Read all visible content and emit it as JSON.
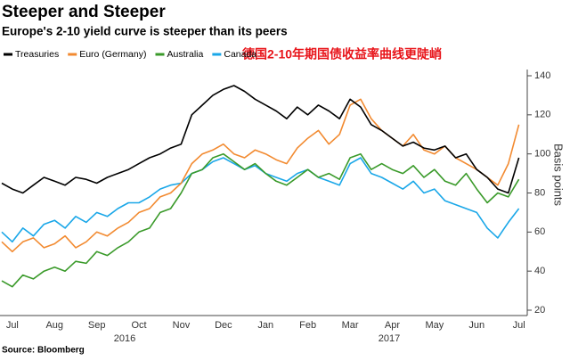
{
  "chart_data": {
    "type": "line",
    "title": "Steeper and Steeper",
    "subtitle": "Europe's 2-10 yield curve is steeper than its peers",
    "annotation": "德国2-10年期国债收益率曲线更陡峭",
    "y_axis_title": "Basis points",
    "source": "Source: Bloomberg",
    "years": [
      "2016",
      "2017"
    ],
    "categories": [
      null,
      "Jul",
      null,
      null,
      null,
      "Aug",
      null,
      null,
      null,
      "Sep",
      null,
      null,
      null,
      "Oct",
      null,
      null,
      null,
      "Nov",
      null,
      null,
      null,
      "Dec",
      null,
      null,
      null,
      "Jan",
      null,
      null,
      null,
      "Feb",
      null,
      null,
      null,
      "Mar",
      null,
      null,
      null,
      "Apr",
      null,
      null,
      null,
      "May",
      null,
      null,
      null,
      "Jun",
      null,
      null,
      null,
      "Jul"
    ],
    "ylim": [
      20,
      140
    ],
    "yticks": [
      20,
      40,
      60,
      80,
      100,
      120,
      140
    ],
    "grid": false,
    "series": [
      {
        "name": "Treasuries",
        "color": "#000000",
        "values": [
          85,
          82,
          80,
          84,
          88,
          86,
          84,
          88,
          87,
          85,
          88,
          90,
          92,
          95,
          98,
          100,
          103,
          105,
          120,
          125,
          130,
          133,
          135,
          132,
          128,
          125,
          122,
          118,
          124,
          120,
          125,
          122,
          118,
          128,
          124,
          115,
          112,
          108,
          104,
          106,
          103,
          102,
          104,
          98,
          100,
          92,
          88,
          82,
          80,
          98
        ]
      },
      {
        "name": "Euro (Germany)",
        "color": "#f28a30",
        "values": [
          55,
          50,
          55,
          57,
          52,
          54,
          58,
          52,
          55,
          60,
          58,
          62,
          65,
          70,
          72,
          78,
          80,
          85,
          95,
          100,
          102,
          105,
          100,
          98,
          102,
          100,
          97,
          95,
          103,
          108,
          112,
          105,
          110,
          125,
          128,
          118,
          112,
          108,
          104,
          110,
          102,
          100,
          104,
          98,
          95,
          92,
          88,
          84,
          95,
          115
        ]
      },
      {
        "name": "Australia",
        "color": "#3a9a2a",
        "values": [
          35,
          32,
          38,
          36,
          40,
          42,
          40,
          45,
          44,
          50,
          48,
          52,
          55,
          60,
          62,
          70,
          72,
          80,
          90,
          92,
          98,
          100,
          96,
          92,
          95,
          90,
          86,
          84,
          88,
          92,
          88,
          90,
          87,
          98,
          100,
          92,
          95,
          92,
          90,
          94,
          88,
          92,
          86,
          84,
          90,
          82,
          75,
          80,
          78,
          87
        ]
      },
      {
        "name": "Canada",
        "color": "#1aa7e8",
        "values": [
          60,
          55,
          62,
          58,
          64,
          66,
          62,
          68,
          65,
          70,
          68,
          72,
          75,
          75,
          78,
          82,
          84,
          85,
          90,
          92,
          96,
          98,
          95,
          92,
          94,
          90,
          88,
          86,
          90,
          92,
          88,
          86,
          84,
          95,
          98,
          90,
          88,
          85,
          82,
          86,
          80,
          82,
          76,
          74,
          72,
          70,
          62,
          57,
          65,
          72
        ]
      }
    ]
  }
}
